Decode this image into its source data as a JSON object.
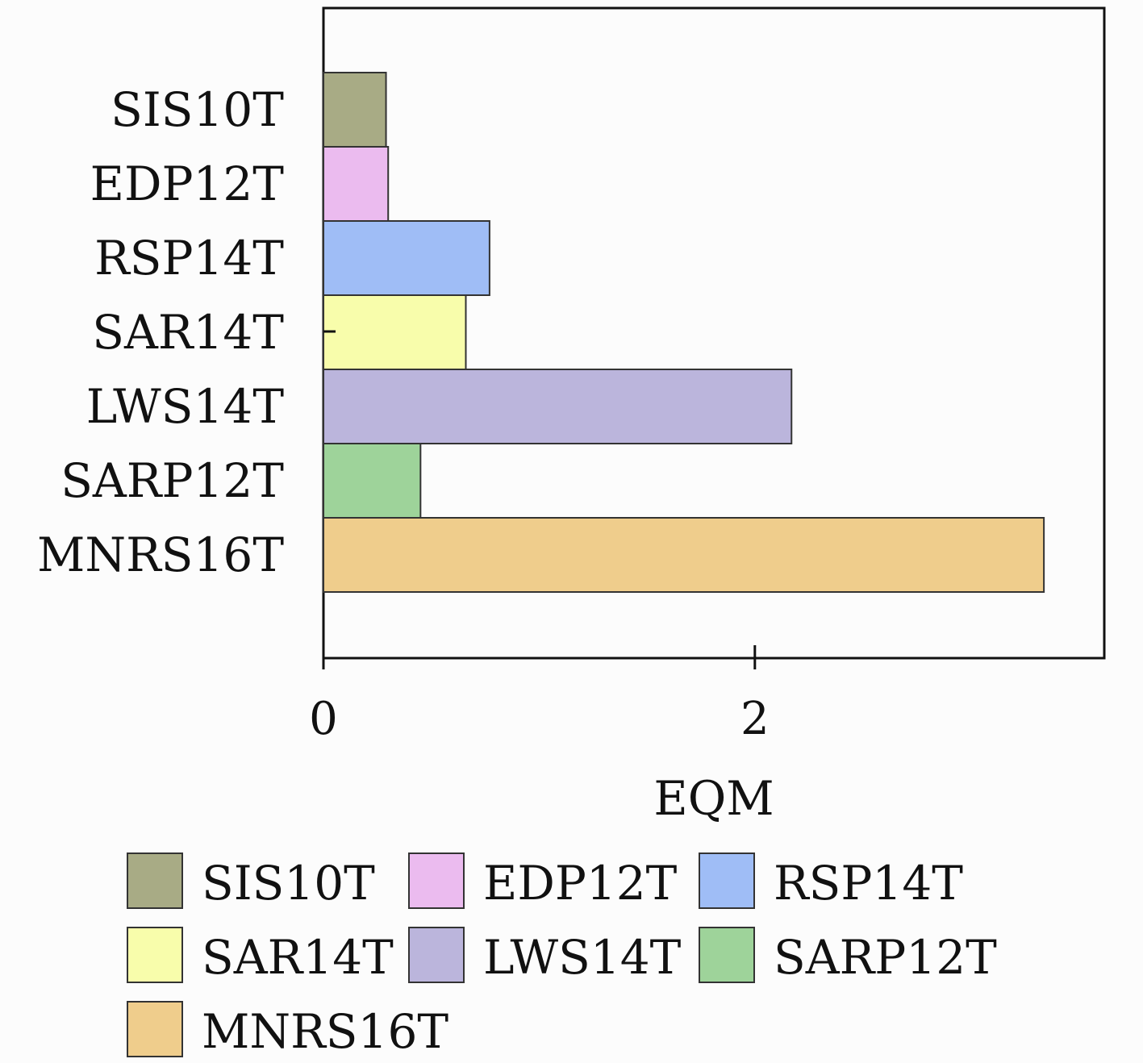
{
  "chart_data": {
    "type": "bar",
    "orientation": "horizontal",
    "categories": [
      "SIS10T",
      "EDP12T",
      "RSP14T",
      "SAR14T",
      "LWS14T",
      "SARP12T",
      "MNRS16T"
    ],
    "values": [
      0.29,
      0.3,
      0.77,
      0.66,
      2.17,
      0.45,
      3.34
    ],
    "colors": [
      "#a8ab85",
      "#ebbbef",
      "#9fbdf6",
      "#f8fdab",
      "#bbb5dc",
      "#9ed39a",
      "#efcd8c"
    ],
    "xlabel": "EQM",
    "ylabel": "",
    "title": "",
    "xlim": [
      0,
      3.62
    ],
    "xticks": [
      "0",
      "2"
    ],
    "grid": false,
    "legend": {
      "placement": "bottom",
      "columns": 3,
      "entries": [
        "SIS10T",
        "EDP12T",
        "RSP14T",
        "SAR14T",
        "LWS14T",
        "SARP12T",
        "MNRS16T"
      ]
    }
  }
}
